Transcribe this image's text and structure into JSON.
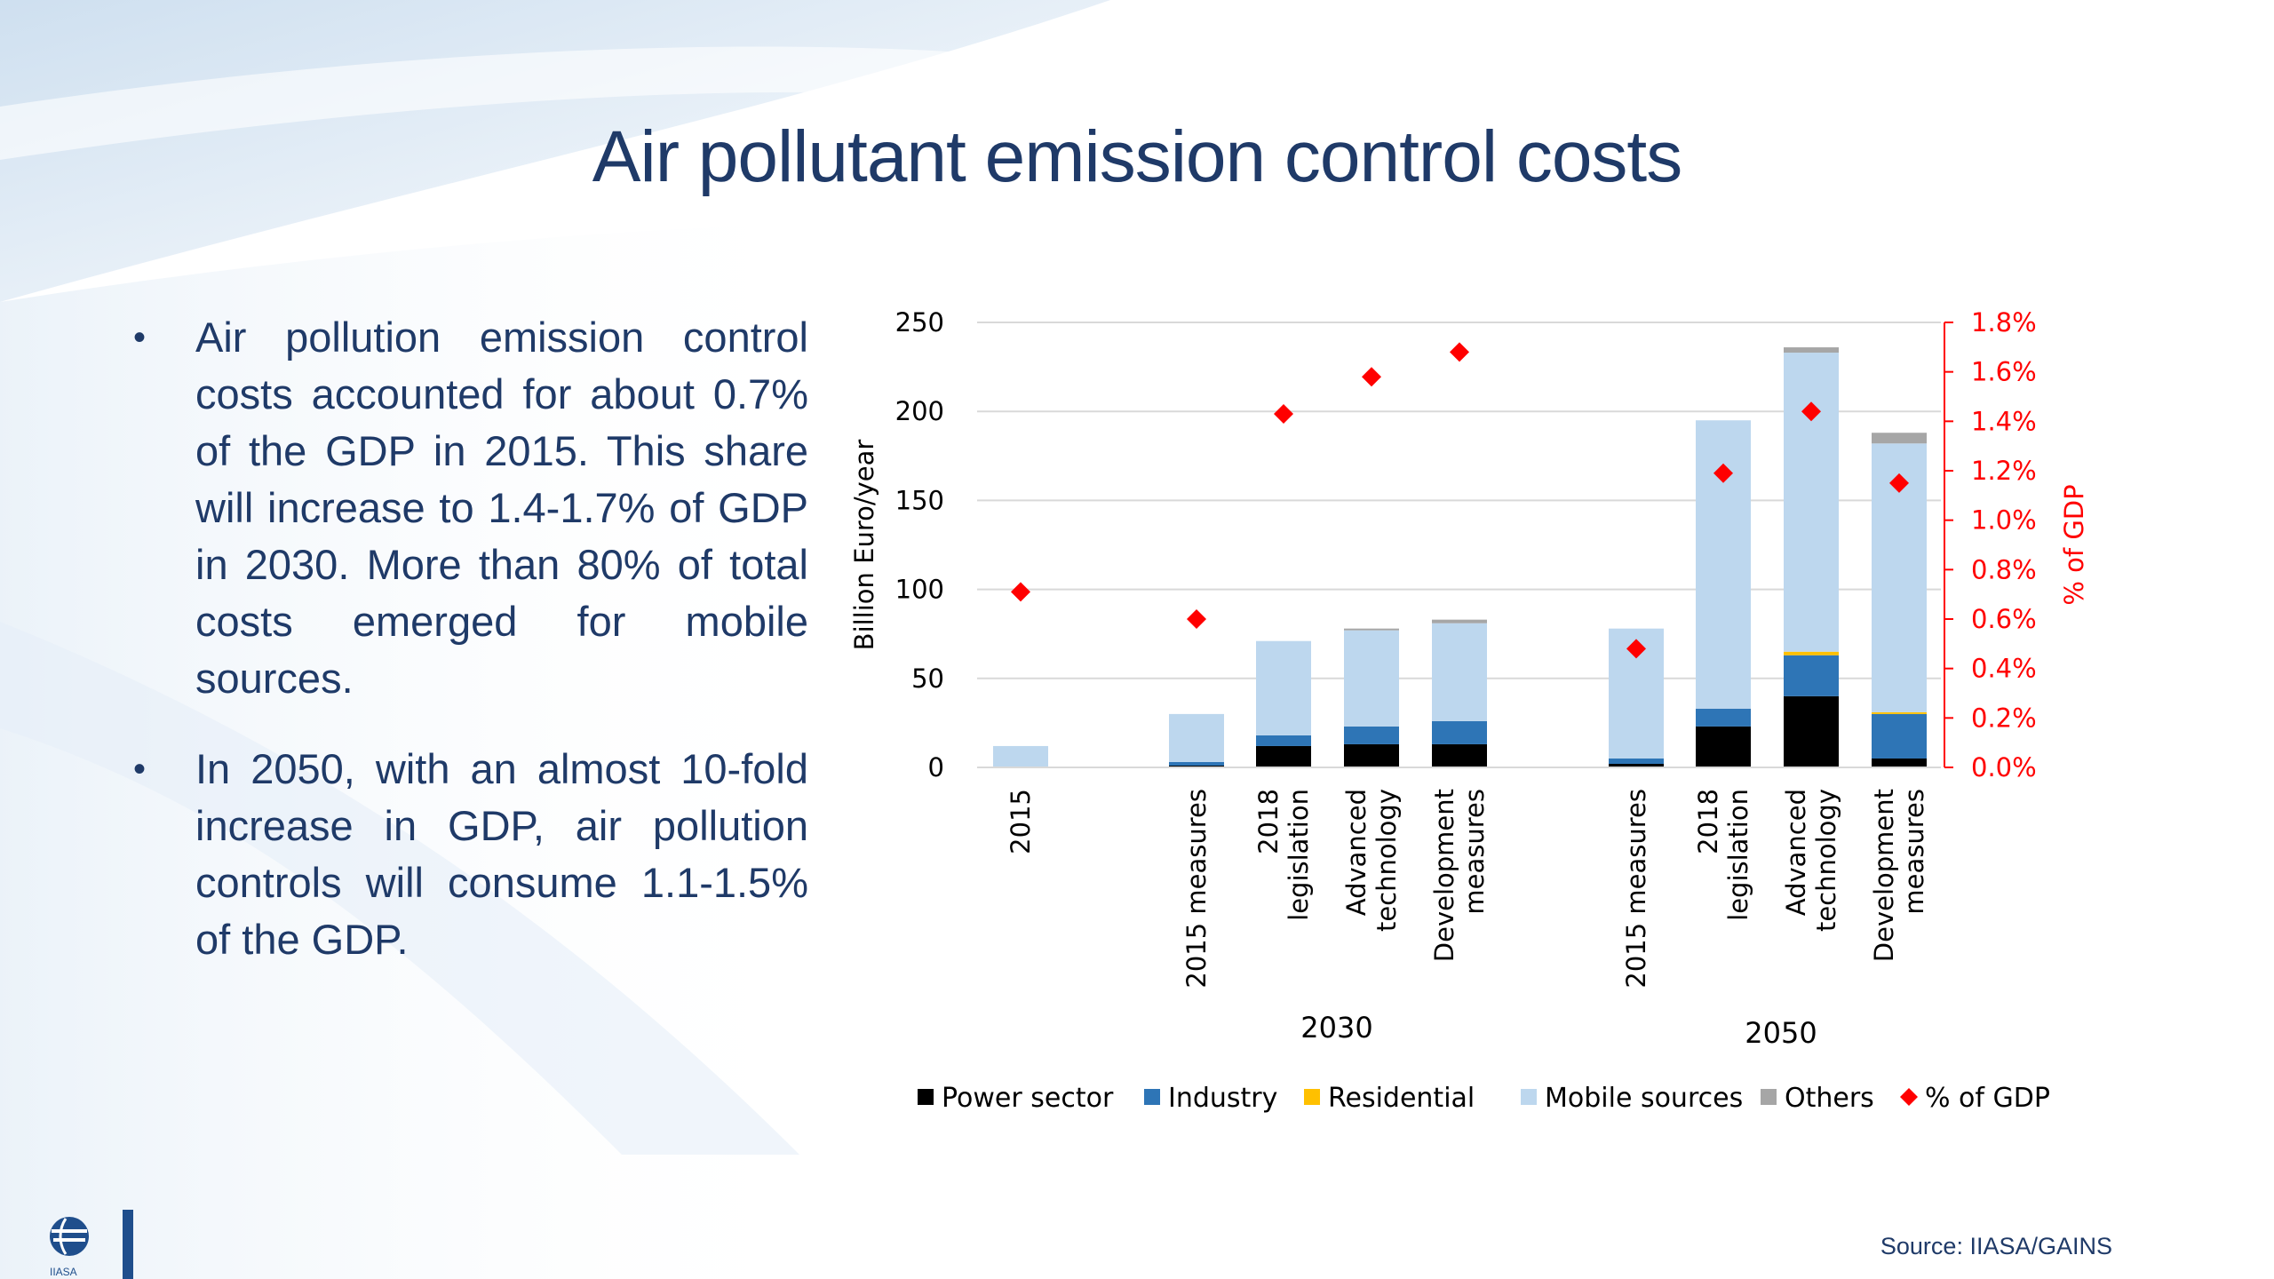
{
  "slide": {
    "title": "Air pollutant emission control costs",
    "bullets": [
      "Air pollution emission control costs accounted for about 0.7% of the GDP in 2015. This share will increase to 1.4-1.7% of GDP in 2030. More than 80% of total costs emerged for mobile sources.",
      "In 2050, with an almost 10-fold increase in GDP, air pollution controls will consume 1.1-1.5% of the GDP."
    ],
    "bullet_glyph": "•",
    "source": "Source: IIASA/GAINS",
    "logo_icon": "iiasa-globe-logo"
  },
  "chart_data": {
    "type": "bar",
    "stacked": true,
    "categories": [
      {
        "label": "2015",
        "group": ""
      },
      {
        "label": "2015 measures",
        "group": "2030"
      },
      {
        "label": "2018 legislation",
        "group": "2030"
      },
      {
        "label": "Advanced technology",
        "group": "2030"
      },
      {
        "label": "Development measures",
        "group": "2030"
      },
      {
        "label": "2015 measures",
        "group": "2050"
      },
      {
        "label": "2018 legislation",
        "group": "2050"
      },
      {
        "label": "Advanced technology",
        "group": "2050"
      },
      {
        "label": "Development measures",
        "group": "2050"
      }
    ],
    "groups": [
      "2030",
      "2050"
    ],
    "series": [
      {
        "name": "Power sector",
        "color": "#000000",
        "values": [
          0,
          1,
          12,
          13,
          13,
          2,
          23,
          40,
          5
        ]
      },
      {
        "name": "Industry",
        "color": "#2e75b6",
        "values": [
          0,
          2,
          6,
          10,
          13,
          3,
          10,
          23,
          25
        ]
      },
      {
        "name": "Residential",
        "color": "#ffc000",
        "values": [
          0,
          0,
          0,
          0,
          0,
          0,
          0,
          2,
          1
        ]
      },
      {
        "name": "Mobile sources",
        "color": "#bdd7ee",
        "values": [
          12,
          27,
          53,
          54,
          55,
          73,
          162,
          168,
          151
        ]
      },
      {
        "name": "Others",
        "color": "#a6a6a6",
        "values": [
          0,
          0,
          0,
          1,
          2,
          0,
          0,
          3,
          6
        ]
      }
    ],
    "secondary_series": {
      "name": "% of GDP",
      "color": "#ff0000",
      "marker": "diamond",
      "values": [
        0.71,
        0.6,
        1.43,
        1.58,
        1.68,
        0.48,
        1.19,
        1.44,
        1.15
      ]
    },
    "ylabel": "Billion Euro/year",
    "y2label": "% of GDP",
    "ylim": [
      0,
      250
    ],
    "yticks": [
      "0",
      "50",
      "100",
      "150",
      "200",
      "250"
    ],
    "y2lim": [
      0,
      1.8
    ],
    "y2ticks": [
      "0.0%",
      "0.2%",
      "0.4%",
      "0.6%",
      "0.8%",
      "1.0%",
      "1.2%",
      "1.4%",
      "1.6%",
      "1.8%"
    ],
    "grid": true,
    "legend_position": "bottom"
  }
}
